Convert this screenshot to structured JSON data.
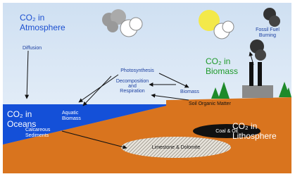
{
  "labels": {
    "atmosphere": [
      "CO₂ in",
      "Atmosphere"
    ],
    "diffusion": "Diffusion",
    "photosynthesis": "Photosynthesis",
    "fossil_fuel": [
      "Fossil Fuel",
      "Burning"
    ],
    "biomass_pool": [
      "CO₂ in",
      "Biomass"
    ],
    "decomposition": [
      "Decomposition",
      "and",
      "Respiration"
    ],
    "biomass": "Biomass",
    "soil": "Soil Organic Matter",
    "oceans": [
      "CO₂ in",
      "Oceans"
    ],
    "aquatic": [
      "Aquatic",
      "Biomass"
    ],
    "calcareous": [
      "Calcareous",
      "Sediments"
    ],
    "coal": "Coal & Oil",
    "lithosphere": [
      "CO₂ in",
      "Lithosphere"
    ],
    "limestone": "Limestone & Dolomite"
  }
}
